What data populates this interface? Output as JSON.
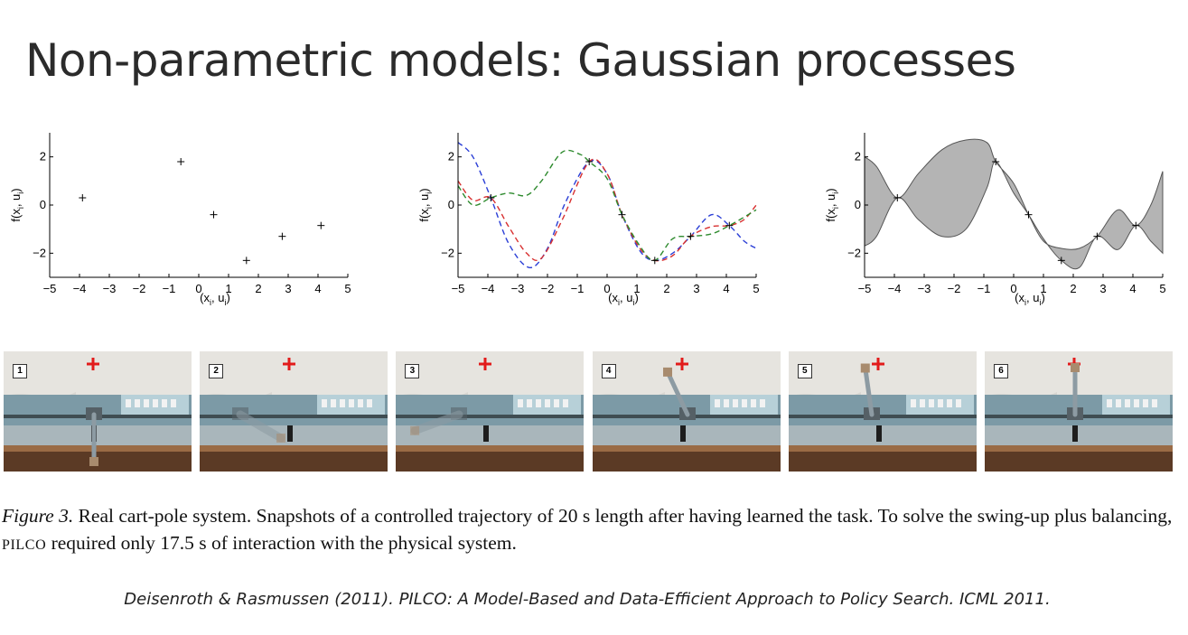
{
  "slide": {
    "title": "Non-parametric models: Gaussian processes"
  },
  "chart_data": [
    {
      "type": "scatter",
      "xlabel": "(x_i, u_i)",
      "ylabel": "f(x_i, u_i)",
      "xlim": [
        -5,
        5
      ],
      "ylim": [
        -3,
        3
      ],
      "xticks": [
        "−5",
        "−4",
        "−3",
        "−2",
        "−1",
        "0",
        "1",
        "2",
        "3",
        "4",
        "5"
      ],
      "yticks": [
        "−2",
        "0",
        "2"
      ],
      "points": [
        [
          -3.9,
          0.3
        ],
        [
          -0.6,
          1.8
        ],
        [
          0.5,
          -0.4
        ],
        [
          1.6,
          -2.3
        ],
        [
          2.8,
          -1.3
        ],
        [
          4.1,
          -0.85
        ]
      ]
    },
    {
      "type": "line",
      "xlabel": "(x_i, u_i)",
      "ylabel": "f(x_i, u_i)",
      "xlim": [
        -5,
        5
      ],
      "ylim": [
        -3,
        3
      ],
      "xticks": [
        "−5",
        "−4",
        "−3",
        "−2",
        "−1",
        "0",
        "1",
        "2",
        "3",
        "4",
        "5"
      ],
      "yticks": [
        "−2",
        "0",
        "2"
      ],
      "points": [
        [
          -3.9,
          0.3
        ],
        [
          -0.6,
          1.8
        ],
        [
          0.5,
          -0.4
        ],
        [
          1.6,
          -2.3
        ],
        [
          2.8,
          -1.3
        ],
        [
          4.1,
          -0.85
        ]
      ],
      "series": [
        {
          "color": "#2b3fd6",
          "style": "dashed",
          "x": [
            -5,
            -4.5,
            -3.9,
            -3.3,
            -2.6,
            -2,
            -1.4,
            -0.6,
            0,
            0.5,
            1.1,
            1.6,
            2.2,
            2.8,
            3.5,
            4.1,
            4.6,
            5
          ],
          "y": [
            2.6,
            2.0,
            0.3,
            -1.6,
            -2.6,
            -1.8,
            0.1,
            1.8,
            1.3,
            -0.4,
            -1.9,
            -2.3,
            -2.0,
            -1.3,
            -0.4,
            -0.85,
            -1.5,
            -1.8
          ]
        },
        {
          "color": "#d83030",
          "style": "dashed",
          "x": [
            -5,
            -4.5,
            -3.9,
            -3.3,
            -2.7,
            -2.2,
            -1.5,
            -0.6,
            0,
            0.5,
            1.1,
            1.6,
            2.2,
            2.8,
            3.5,
            4.1,
            4.6,
            5
          ],
          "y": [
            1.0,
            0.2,
            0.3,
            -0.9,
            -2.0,
            -2.2,
            -0.6,
            1.8,
            1.3,
            -0.4,
            -1.8,
            -2.3,
            -2.1,
            -1.3,
            -0.9,
            -0.85,
            -0.6,
            0.0
          ]
        },
        {
          "color": "#2d8a2d",
          "style": "dashed",
          "x": [
            -5,
            -4.5,
            -3.9,
            -3.3,
            -2.7,
            -2.2,
            -1.5,
            -0.9,
            -0.6,
            0,
            0.5,
            1.1,
            1.6,
            2.2,
            2.8,
            3.5,
            4.1,
            4.6,
            5
          ],
          "y": [
            0.8,
            0.0,
            0.3,
            0.5,
            0.4,
            1.0,
            2.2,
            2.1,
            1.8,
            1.1,
            -0.4,
            -1.7,
            -2.3,
            -1.4,
            -1.3,
            -1.2,
            -0.85,
            -0.5,
            -0.2
          ]
        }
      ]
    },
    {
      "type": "area",
      "xlabel": "(x_i, u_i)",
      "ylabel": "f(x_i, u_i)",
      "xlim": [
        -5,
        5
      ],
      "ylim": [
        -3,
        3
      ],
      "xticks": [
        "−5",
        "−4",
        "−3",
        "−2",
        "−1",
        "0",
        "1",
        "2",
        "3",
        "4",
        "5"
      ],
      "yticks": [
        "−2",
        "0",
        "2"
      ],
      "points": [
        [
          -3.9,
          0.3
        ],
        [
          -0.6,
          1.8
        ],
        [
          0.5,
          -0.4
        ],
        [
          1.6,
          -2.3
        ],
        [
          2.8,
          -1.3
        ],
        [
          4.1,
          -0.85
        ]
      ],
      "band": {
        "fill": "#b4b4b4",
        "upper": {
          "x": [
            -5,
            -4.6,
            -3.9,
            -3.2,
            -2.4,
            -1.6,
            -0.9,
            -0.6,
            0,
            0.5,
            1.0,
            1.6,
            2.2,
            2.8,
            3.5,
            4.1,
            4.6,
            5
          ],
          "y": [
            2.0,
            1.6,
            0.3,
            1.3,
            2.3,
            2.7,
            2.6,
            1.8,
            0.9,
            -0.4,
            -1.5,
            -1.8,
            -1.8,
            -1.3,
            -0.2,
            -0.85,
            0.0,
            1.4
          ]
        },
        "lower": {
          "x": [
            -5,
            -4.6,
            -3.9,
            -3.2,
            -2.4,
            -1.6,
            -0.9,
            -0.6,
            0,
            0.5,
            1.0,
            1.6,
            2.2,
            2.8,
            3.5,
            4.1,
            4.6,
            5
          ],
          "y": [
            -1.7,
            -1.3,
            0.3,
            -0.6,
            -1.3,
            -1.0,
            0.7,
            1.8,
            0.5,
            -0.4,
            -1.4,
            -2.3,
            -2.6,
            -1.3,
            -1.85,
            -0.85,
            -1.5,
            -2.0
          ]
        }
      }
    }
  ],
  "figure": {
    "snapshots": [
      "1",
      "2",
      "3",
      "4",
      "5",
      "6"
    ],
    "caption_label": "Figure 3.",
    "caption_part1": " Real cart-pole system. Snapshots of a controlled trajectory of 20 s length after having learned the task. To solve the swing-up plus balancing, ",
    "caption_smallcaps": "PILCO",
    "caption_part2": " required only 17.5 s of interaction with the physical system."
  },
  "citation": "Deisenroth & Rasmussen (2011). PILCO: A Model-Based and Data-Efficient Approach to Policy Search. ICML 2011."
}
